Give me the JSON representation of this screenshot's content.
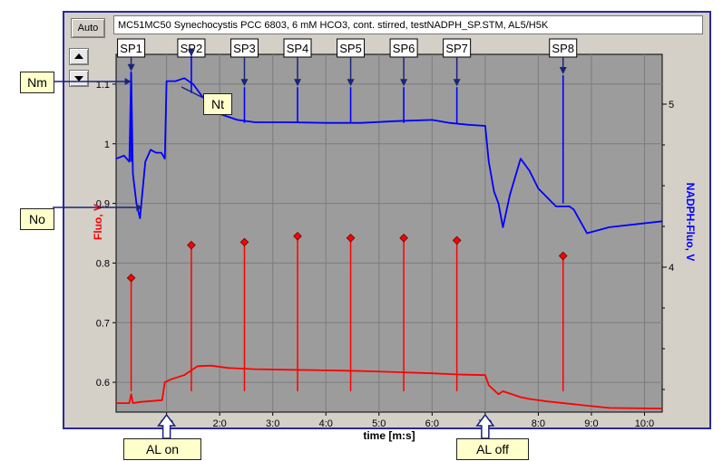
{
  "header": {
    "auto_label": "Auto",
    "file_title": "MC51MC50 Synechocystis PCC 6803, 6 mM HCO3, cont. stirred, testNADPH_SP.STM, AL5/H5K"
  },
  "callouts": {
    "nm": "Nm",
    "no": "No",
    "nt": "Nt",
    "al_on": "AL on",
    "al_off": "AL off"
  },
  "colors": {
    "plot_bg": "#9c9c9c",
    "fluo": "#ff0000",
    "nadph": "#0000ff",
    "panel_bg": "#d4d0c8",
    "panel_border": "#2a2a9a",
    "callout_bg": "#ffffcc"
  },
  "chart_data": {
    "type": "line",
    "xlabel": "time [m:s]",
    "ylabel_left": "Fluo, V",
    "ylabel_right": "NADPH-Fluo, V",
    "x_ticks": [
      "1:0",
      "2:0",
      "3:0",
      "4:0",
      "5:0",
      "6:0",
      "7:0",
      "8:0",
      "9:0",
      "10:0"
    ],
    "x_tick_values": [
      60,
      120,
      180,
      240,
      300,
      360,
      420,
      480,
      540,
      600
    ],
    "xlim": [
      3,
      620
    ],
    "y_left_ticks": [
      "0.6",
      "0.7",
      "0.8",
      "0.9",
      "1",
      "1.1"
    ],
    "y_left_tick_values": [
      0.6,
      0.7,
      0.8,
      0.9,
      1.0,
      1.1
    ],
    "ylim_left": [
      0.55,
      1.15
    ],
    "y_right_ticks": [
      "4",
      "5"
    ],
    "y_right_tick_values": [
      4,
      5
    ],
    "grid": true,
    "saturation_pulses": [
      {
        "label": "SP1",
        "t": 20,
        "fluo_peak": 0.775
      },
      {
        "label": "SP2",
        "t": 88,
        "fluo_peak": 0.83
      },
      {
        "label": "SP3",
        "t": 148,
        "fluo_peak": 0.835
      },
      {
        "label": "SP4",
        "t": 208,
        "fluo_peak": 0.845
      },
      {
        "label": "SP5",
        "t": 268,
        "fluo_peak": 0.842
      },
      {
        "label": "SP6",
        "t": 328,
        "fluo_peak": 0.842
      },
      {
        "label": "SP7",
        "t": 388,
        "fluo_peak": 0.838
      },
      {
        "label": "SP8",
        "t": 508,
        "fluo_peak": 0.812
      }
    ],
    "series": [
      {
        "name": "Fluo, V",
        "axis": "left",
        "x": [
          3,
          18,
          20,
          22,
          30,
          55,
          58,
          65,
          80,
          95,
          110,
          130,
          160,
          200,
          240,
          280,
          320,
          360,
          390,
          420,
          424,
          435,
          440,
          460,
          470,
          490,
          540,
          560,
          620
        ],
        "y": [
          0.565,
          0.565,
          0.58,
          0.565,
          0.567,
          0.57,
          0.6,
          0.605,
          0.612,
          0.627,
          0.628,
          0.624,
          0.622,
          0.621,
          0.62,
          0.619,
          0.617,
          0.615,
          0.613,
          0.612,
          0.595,
          0.58,
          0.585,
          0.575,
          0.572,
          0.568,
          0.56,
          0.557,
          0.556
        ]
      },
      {
        "name": "NADPH-Fluo, V",
        "axis": "left",
        "x": [
          3,
          12,
          18,
          20,
          22,
          26,
          30,
          36,
          42,
          48,
          54,
          58,
          60,
          70,
          80,
          90,
          95,
          100,
          110,
          120,
          140,
          160,
          200,
          240,
          280,
          320,
          360,
          380,
          400,
          420,
          424,
          430,
          435,
          440,
          448,
          460,
          470,
          480,
          500,
          515,
          520,
          535,
          560,
          620
        ],
        "y": [
          0.975,
          0.98,
          0.97,
          1.12,
          0.95,
          0.9,
          0.875,
          0.97,
          0.99,
          0.985,
          0.985,
          0.975,
          1.105,
          1.105,
          1.11,
          1.1,
          1.09,
          1.08,
          1.065,
          1.05,
          1.04,
          1.036,
          1.036,
          1.035,
          1.035,
          1.038,
          1.04,
          1.035,
          1.032,
          1.03,
          0.97,
          0.92,
          0.9,
          0.86,
          0.915,
          0.975,
          0.955,
          0.925,
          0.895,
          0.895,
          0.89,
          0.85,
          0.86,
          0.87
        ]
      }
    ]
  }
}
